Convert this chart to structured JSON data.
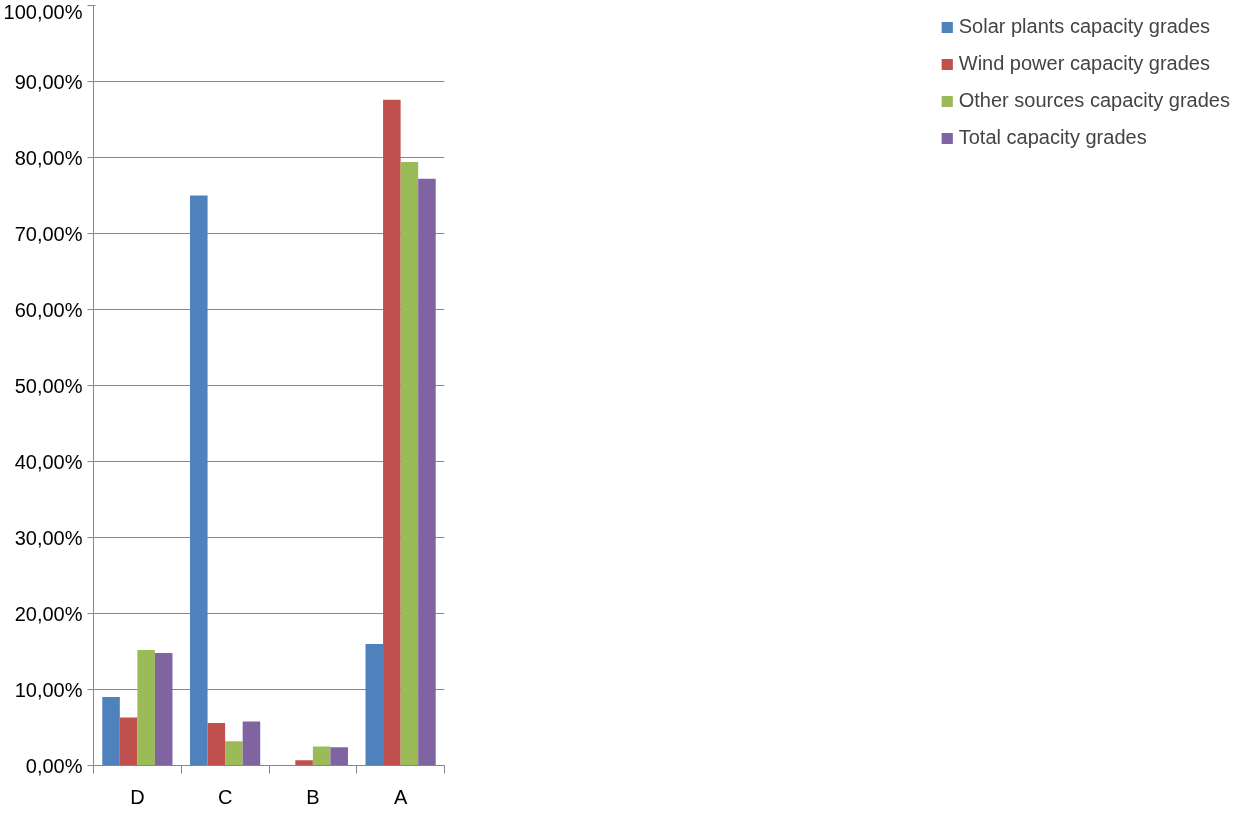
{
  "chart_data": {
    "type": "bar",
    "categories": [
      "D",
      "C",
      "B",
      "A"
    ],
    "series": [
      {
        "name": "Solar plants capacity grades",
        "color": "#4f81bd",
        "values": [
          9.0,
          75.0,
          0,
          16.0
        ]
      },
      {
        "name": "Wind power capacity grades",
        "color": "#c0504d",
        "values": [
          6.3,
          5.6,
          0.7,
          87.6
        ]
      },
      {
        "name": "Other sources capacity grades",
        "color": "#9bbb59",
        "values": [
          15.2,
          3.2,
          2.5,
          79.4
        ]
      },
      {
        "name": "Total capacity grades",
        "color": "#8064a2",
        "values": [
          14.8,
          5.8,
          2.4,
          77.2
        ]
      }
    ],
    "ylim": [
      0,
      100
    ],
    "yticks": [
      {
        "value": 0,
        "label": "0,00%"
      },
      {
        "value": 10,
        "label": "10,00%"
      },
      {
        "value": 20,
        "label": "20,00%"
      },
      {
        "value": 30,
        "label": "30,00%"
      },
      {
        "value": 40,
        "label": "40,00%"
      },
      {
        "value": 50,
        "label": "50,00%"
      },
      {
        "value": 60,
        "label": "60,00%"
      },
      {
        "value": 70,
        "label": "70,00%"
      },
      {
        "value": 80,
        "label": "80,00%"
      },
      {
        "value": 90,
        "label": "90,00%"
      },
      {
        "value": 100,
        "label": "100,00%"
      }
    ],
    "grid": "y",
    "legend": "right"
  }
}
